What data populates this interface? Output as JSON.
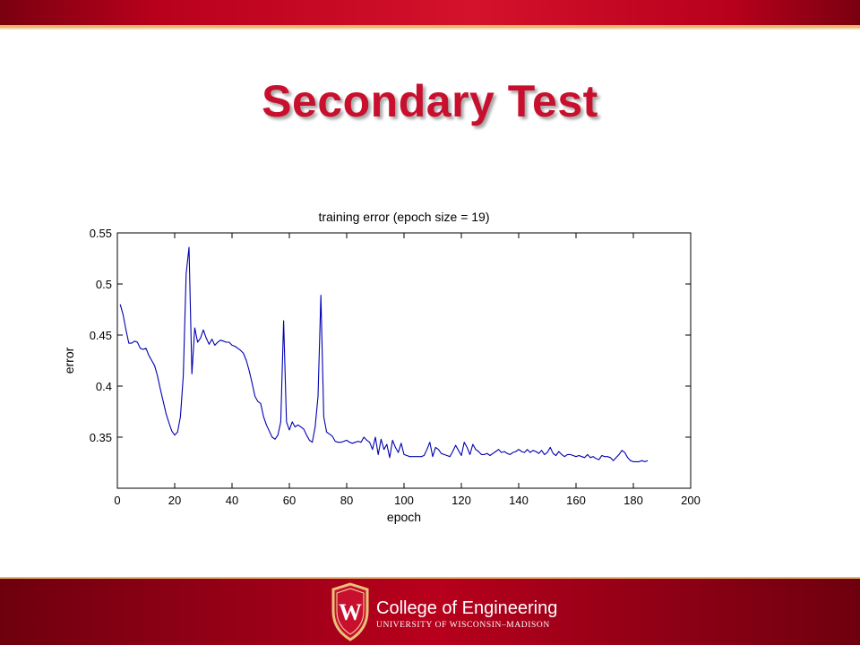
{
  "slide": {
    "title": "Secondary Test"
  },
  "footer": {
    "college_name": "College of Engineering",
    "university": "UNIVERSITY OF WISCONSIN–MADISON",
    "crest_letter": "W"
  },
  "colors": {
    "title": "#c8102e",
    "band": "#b8001c",
    "rule": "#e8b86a",
    "series_line": "#0000b0"
  },
  "chart_data": {
    "type": "line",
    "title": "training error (epoch size = 19)",
    "xlabel": "epoch",
    "ylabel": "error",
    "xlim": [
      0,
      200
    ],
    "ylim": [
      0.3,
      0.55
    ],
    "xticks": [
      0,
      20,
      40,
      60,
      80,
      100,
      120,
      140,
      160,
      180,
      200
    ],
    "yticks": [
      0.35,
      0.4,
      0.45,
      0.5,
      0.55
    ],
    "grid": false,
    "series": [
      {
        "x": [
          1,
          2,
          3,
          4,
          5,
          6,
          7,
          8,
          9,
          10,
          11,
          12,
          13,
          14,
          15,
          16,
          17,
          18,
          19,
          20,
          21,
          22,
          23,
          24,
          25,
          26,
          27,
          28,
          29,
          30,
          31,
          32,
          33,
          34,
          35,
          36,
          37,
          38,
          39,
          40,
          41,
          42,
          43,
          44,
          45,
          46,
          47,
          48,
          49,
          50,
          51,
          52,
          53,
          54,
          55,
          56,
          57,
          58,
          59,
          60,
          61,
          62,
          63,
          64,
          65,
          66,
          67,
          68,
          69,
          70,
          71,
          72,
          73,
          74,
          75,
          76,
          77,
          78,
          79,
          80,
          81,
          82,
          83,
          84,
          85,
          86,
          87,
          88,
          89,
          90,
          91,
          92,
          93,
          94,
          95,
          96,
          97,
          98,
          99,
          100,
          101,
          102,
          103,
          104,
          105,
          106,
          107,
          108,
          109,
          110,
          111,
          112,
          113,
          114,
          115,
          116,
          117,
          118,
          119,
          120,
          121,
          122,
          123,
          124,
          125,
          126,
          127,
          128,
          129,
          130,
          131,
          132,
          133,
          134,
          135,
          136,
          137,
          138,
          139,
          140,
          141,
          142,
          143,
          144,
          145,
          146,
          147,
          148,
          149,
          150,
          151,
          152,
          153,
          154,
          155,
          156,
          157,
          158,
          159,
          160,
          161,
          162,
          163,
          164,
          165,
          166,
          167,
          168,
          169,
          170,
          171,
          172,
          173,
          174,
          175,
          176,
          177,
          178,
          179,
          180,
          181,
          182,
          183,
          184,
          185
        ],
        "y": [
          0.48,
          0.47,
          0.455,
          0.442,
          0.442,
          0.444,
          0.443,
          0.437,
          0.436,
          0.437,
          0.43,
          0.425,
          0.42,
          0.41,
          0.397,
          0.385,
          0.373,
          0.364,
          0.356,
          0.352,
          0.355,
          0.37,
          0.41,
          0.51,
          0.536,
          0.412,
          0.457,
          0.443,
          0.447,
          0.455,
          0.447,
          0.441,
          0.446,
          0.44,
          0.443,
          0.445,
          0.444,
          0.443,
          0.443,
          0.44,
          0.439,
          0.437,
          0.435,
          0.432,
          0.425,
          0.415,
          0.403,
          0.39,
          0.385,
          0.383,
          0.37,
          0.362,
          0.356,
          0.35,
          0.348,
          0.352,
          0.365,
          0.464,
          0.365,
          0.357,
          0.365,
          0.36,
          0.362,
          0.36,
          0.358,
          0.352,
          0.347,
          0.345,
          0.36,
          0.39,
          0.489,
          0.37,
          0.355,
          0.353,
          0.351,
          0.346,
          0.345,
          0.345,
          0.346,
          0.347,
          0.345,
          0.344,
          0.345,
          0.346,
          0.345,
          0.35,
          0.347,
          0.345,
          0.338,
          0.35,
          0.333,
          0.348,
          0.338,
          0.343,
          0.33,
          0.347,
          0.34,
          0.335,
          0.344,
          0.333,
          0.332,
          0.331,
          0.331,
          0.331,
          0.331,
          0.331,
          0.332,
          0.338,
          0.345,
          0.331,
          0.34,
          0.338,
          0.334,
          0.333,
          0.332,
          0.331,
          0.336,
          0.342,
          0.337,
          0.332,
          0.345,
          0.34,
          0.333,
          0.343,
          0.338,
          0.336,
          0.333,
          0.333,
          0.334,
          0.332,
          0.334,
          0.336,
          0.338,
          0.335,
          0.336,
          0.334,
          0.333,
          0.335,
          0.336,
          0.338,
          0.336,
          0.335,
          0.338,
          0.335,
          0.337,
          0.336,
          0.334,
          0.337,
          0.333,
          0.335,
          0.34,
          0.334,
          0.332,
          0.336,
          0.333,
          0.331,
          0.333,
          0.333,
          0.332,
          0.331,
          0.332,
          0.331,
          0.33,
          0.333,
          0.33,
          0.331,
          0.329,
          0.328,
          0.332,
          0.331,
          0.331,
          0.33,
          0.327,
          0.33,
          0.333,
          0.337,
          0.335,
          0.33,
          0.327,
          0.326,
          0.326,
          0.326,
          0.327,
          0.326,
          0.327
        ]
      }
    ]
  }
}
